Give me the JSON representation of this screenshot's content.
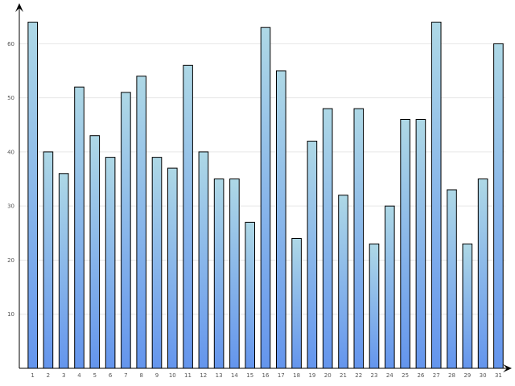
{
  "chart_data": {
    "type": "bar",
    "title": "",
    "xlabel": "",
    "ylabel": "",
    "categories": [
      "1",
      "2",
      "3",
      "4",
      "5",
      "6",
      "7",
      "8",
      "9",
      "10",
      "11",
      "12",
      "13",
      "14",
      "15",
      "16",
      "17",
      "18",
      "19",
      "20",
      "21",
      "22",
      "23",
      "24",
      "25",
      "26",
      "27",
      "28",
      "29",
      "30",
      "31"
    ],
    "values": [
      64,
      40,
      36,
      52,
      43,
      39,
      51,
      54,
      39,
      37,
      56,
      40,
      35,
      35,
      27,
      63,
      55,
      24,
      42,
      48,
      32,
      48,
      23,
      30,
      46,
      46,
      64,
      33,
      23,
      35,
      60
    ],
    "ylim": [
      0,
      66
    ],
    "yticks": [
      10,
      20,
      30,
      40,
      50,
      60
    ],
    "grid": true,
    "legend": "none",
    "colors": {
      "bar_top": "#aed8e6",
      "bar_bottom": "#6495ed",
      "bar_outline": "#000000",
      "grid": "#e6e6e6",
      "axis": "#000000",
      "tick_text": "#555555"
    }
  }
}
